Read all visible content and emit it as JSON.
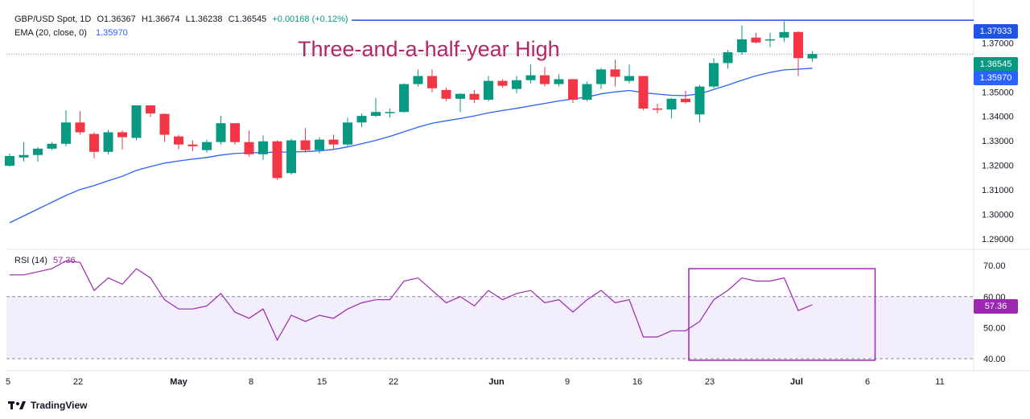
{
  "header": {
    "symbol": "GBP/USD Spot, 1D",
    "open": "O1.36367",
    "high": "H1.36674",
    "low": "L1.36238",
    "close": "C1.36545",
    "change": "+0.00168 (+0.12%)",
    "ema_label": "EMA (20, close, 0)",
    "ema_value": "1.35970"
  },
  "annotation": "Three-and-a-half-year High",
  "rsi_header": {
    "label": "RSI (14)",
    "value": "57.36"
  },
  "footer": {
    "brand": "TradingView"
  },
  "colors": {
    "up": "#089981",
    "down": "#f23645",
    "ema": "#2962ff",
    "rsi": "#9c27b0",
    "resistance": "#1e53e5",
    "annotation": "#b5256a",
    "box": "#9c27b0"
  },
  "tags": {
    "resistance": "1.37933",
    "close": "1.36545",
    "ema": "1.35970",
    "rsi": "57.36"
  },
  "chart_data": [
    {
      "type": "candlestick",
      "title": "GBP/USD Spot, 1D",
      "x_tick_labels": [
        "5",
        "22",
        "May",
        "8",
        "15",
        "22",
        "Jun",
        "9",
        "16",
        "23",
        "Jul",
        "6",
        "11"
      ],
      "y_tick_labels": [
        "1.29000",
        "1.30000",
        "1.31000",
        "1.32000",
        "1.33000",
        "1.34000",
        "1.35000",
        "1.37000"
      ],
      "ylim": [
        1.285,
        1.381
      ],
      "resistance_level": 1.37933,
      "last_close_level": 1.36545,
      "candles": [
        {
          "o": 1.3198,
          "h": 1.3248,
          "l": 1.3195,
          "c": 1.3238
        },
        {
          "o": 1.3232,
          "h": 1.3295,
          "l": 1.3215,
          "c": 1.3242
        },
        {
          "o": 1.3242,
          "h": 1.3275,
          "l": 1.3215,
          "c": 1.3268
        },
        {
          "o": 1.3268,
          "h": 1.3295,
          "l": 1.3262,
          "c": 1.3288
        },
        {
          "o": 1.3288,
          "h": 1.3425,
          "l": 1.3278,
          "c": 1.3375
        },
        {
          "o": 1.3375,
          "h": 1.3422,
          "l": 1.3325,
          "c": 1.3335
        },
        {
          "o": 1.3328,
          "h": 1.3335,
          "l": 1.3228,
          "c": 1.3255
        },
        {
          "o": 1.3255,
          "h": 1.3345,
          "l": 1.3245,
          "c": 1.3335
        },
        {
          "o": 1.3335,
          "h": 1.3342,
          "l": 1.3265,
          "c": 1.3315
        },
        {
          "o": 1.3312,
          "h": 1.3445,
          "l": 1.3302,
          "c": 1.3445
        },
        {
          "o": 1.3445,
          "h": 1.3445,
          "l": 1.3398,
          "c": 1.3412
        },
        {
          "o": 1.341,
          "h": 1.3412,
          "l": 1.3295,
          "c": 1.3325
        },
        {
          "o": 1.3318,
          "h": 1.3325,
          "l": 1.3265,
          "c": 1.3285
        },
        {
          "o": 1.3285,
          "h": 1.3302,
          "l": 1.3258,
          "c": 1.3278
        },
        {
          "o": 1.3262,
          "h": 1.3305,
          "l": 1.3252,
          "c": 1.3295
        },
        {
          "o": 1.3295,
          "h": 1.3402,
          "l": 1.3285,
          "c": 1.3372
        },
        {
          "o": 1.3372,
          "h": 1.3372,
          "l": 1.3285,
          "c": 1.3295
        },
        {
          "o": 1.3295,
          "h": 1.3342,
          "l": 1.3235,
          "c": 1.3245
        },
        {
          "o": 1.3245,
          "h": 1.3322,
          "l": 1.3222,
          "c": 1.3298
        },
        {
          "o": 1.3298,
          "h": 1.3302,
          "l": 1.314,
          "c": 1.3148
        },
        {
          "o": 1.3168,
          "h": 1.3308,
          "l": 1.3162,
          "c": 1.3302
        },
        {
          "o": 1.3302,
          "h": 1.3352,
          "l": 1.3252,
          "c": 1.3262
        },
        {
          "o": 1.3262,
          "h": 1.3315,
          "l": 1.3248,
          "c": 1.3305
        },
        {
          "o": 1.3305,
          "h": 1.3325,
          "l": 1.3268,
          "c": 1.3285
        },
        {
          "o": 1.3285,
          "h": 1.3395,
          "l": 1.3275,
          "c": 1.3375
        },
        {
          "o": 1.3375,
          "h": 1.3412,
          "l": 1.3355,
          "c": 1.3402
        },
        {
          "o": 1.3402,
          "h": 1.3475,
          "l": 1.3398,
          "c": 1.3418
        },
        {
          "o": 1.3418,
          "h": 1.3432,
          "l": 1.3395,
          "c": 1.3418
        },
        {
          "o": 1.3418,
          "h": 1.3535,
          "l": 1.3415,
          "c": 1.3532
        },
        {
          "o": 1.3532,
          "h": 1.3592,
          "l": 1.3522,
          "c": 1.3565
        },
        {
          "o": 1.3565,
          "h": 1.3592,
          "l": 1.3498,
          "c": 1.3515
        },
        {
          "o": 1.3508,
          "h": 1.3518,
          "l": 1.3462,
          "c": 1.3472
        },
        {
          "o": 1.3472,
          "h": 1.3495,
          "l": 1.3418,
          "c": 1.3492
        },
        {
          "o": 1.3492,
          "h": 1.3508,
          "l": 1.3455,
          "c": 1.3468
        },
        {
          "o": 1.3468,
          "h": 1.3565,
          "l": 1.3462,
          "c": 1.3545
        },
        {
          "o": 1.3545,
          "h": 1.3552,
          "l": 1.3518,
          "c": 1.3525
        },
        {
          "o": 1.3512,
          "h": 1.3565,
          "l": 1.3495,
          "c": 1.3548
        },
        {
          "o": 1.3548,
          "h": 1.3612,
          "l": 1.3535,
          "c": 1.3568
        },
        {
          "o": 1.3568,
          "h": 1.3602,
          "l": 1.3522,
          "c": 1.3532
        },
        {
          "o": 1.3532,
          "h": 1.3572,
          "l": 1.3522,
          "c": 1.3552
        },
        {
          "o": 1.3552,
          "h": 1.3552,
          "l": 1.3455,
          "c": 1.3468
        },
        {
          "o": 1.3468,
          "h": 1.3542,
          "l": 1.3462,
          "c": 1.3532
        },
        {
          "o": 1.3532,
          "h": 1.3598,
          "l": 1.3512,
          "c": 1.3592
        },
        {
          "o": 1.3592,
          "h": 1.3632,
          "l": 1.3522,
          "c": 1.3562
        },
        {
          "o": 1.3545,
          "h": 1.3612,
          "l": 1.3535,
          "c": 1.3565
        },
        {
          "o": 1.3565,
          "h": 1.3565,
          "l": 1.3425,
          "c": 1.3432
        },
        {
          "o": 1.3432,
          "h": 1.3452,
          "l": 1.3412,
          "c": 1.3428
        },
        {
          "o": 1.3428,
          "h": 1.3475,
          "l": 1.3392,
          "c": 1.3472
        },
        {
          "o": 1.3472,
          "h": 1.3505,
          "l": 1.3452,
          "c": 1.3458
        },
        {
          "o": 1.3408,
          "h": 1.3528,
          "l": 1.3375,
          "c": 1.3522
        },
        {
          "o": 1.3522,
          "h": 1.3638,
          "l": 1.3515,
          "c": 1.3618
        },
        {
          "o": 1.3618,
          "h": 1.3672,
          "l": 1.3595,
          "c": 1.3662
        },
        {
          "o": 1.3662,
          "h": 1.3772,
          "l": 1.3652,
          "c": 1.3715
        },
        {
          "o": 1.3722,
          "h": 1.3742,
          "l": 1.3698,
          "c": 1.3702
        },
        {
          "o": 1.3712,
          "h": 1.3742,
          "l": 1.3682,
          "c": 1.3715
        },
        {
          "o": 1.3722,
          "h": 1.3788,
          "l": 1.3705,
          "c": 1.3745
        },
        {
          "o": 1.3745,
          "h": 1.3748,
          "l": 1.3565,
          "c": 1.3638
        },
        {
          "o": 1.3637,
          "h": 1.3667,
          "l": 1.3624,
          "c": 1.3655
        }
      ],
      "ema_20": [
        1.2965,
        1.2993,
        1.3021,
        1.3049,
        1.3077,
        1.3101,
        1.3117,
        1.3137,
        1.3155,
        1.3179,
        1.3195,
        1.3209,
        1.3218,
        1.3225,
        1.3232,
        1.3242,
        1.3248,
        1.3251,
        1.3252,
        1.3254,
        1.3254,
        1.3256,
        1.3259,
        1.3265,
        1.3275,
        1.3288,
        1.3302,
        1.3318,
        1.3337,
        1.3356,
        1.3372,
        1.3382,
        1.3391,
        1.3402,
        1.3414,
        1.3424,
        1.3433,
        1.3443,
        1.3453,
        1.3463,
        1.3471,
        1.3479,
        1.3492,
        1.35,
        1.3506,
        1.3497,
        1.3491,
        1.3486,
        1.3485,
        1.3492,
        1.351,
        1.3528,
        1.3548,
        1.3566,
        1.358,
        1.359,
        1.3593,
        1.3597
      ]
    },
    {
      "type": "line",
      "title": "RSI (14)",
      "y_tick_labels": [
        "40.00",
        "50.00",
        "60.00",
        "70.00"
      ],
      "ylim": [
        38,
        75
      ],
      "bands": [
        40,
        60
      ],
      "highlight_box": {
        "from_index": 48,
        "to_index": 61,
        "y_range": [
          39.5,
          69.0
        ]
      },
      "values": [
        67,
        67,
        68,
        69,
        71.5,
        71,
        62,
        66,
        64,
        69,
        66,
        59,
        56,
        56,
        57,
        61,
        55,
        53,
        56,
        46,
        54,
        52,
        54,
        53,
        56,
        58,
        59,
        59,
        65,
        66,
        62,
        58,
        60,
        57,
        62,
        59,
        61,
        62,
        58,
        59,
        55,
        59,
        62,
        58,
        59,
        47,
        47,
        49,
        49,
        52,
        59,
        62,
        66,
        65,
        65,
        66,
        55.5,
        57.36
      ]
    }
  ]
}
